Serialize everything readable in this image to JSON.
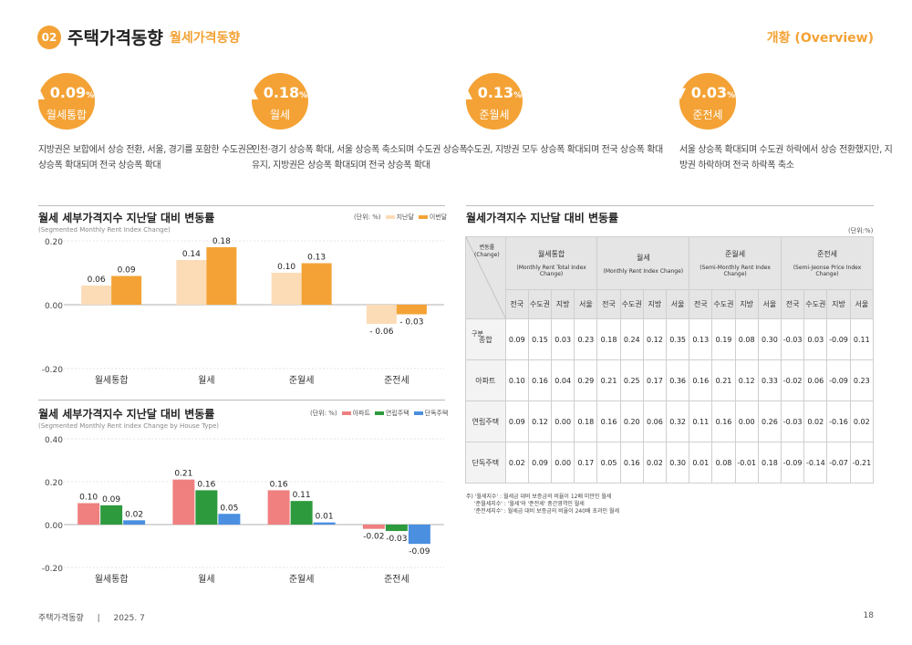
{
  "header": {
    "section_num": "02",
    "title": "주택가격동향",
    "subtitle": "월세가격동향",
    "right_label": "개황 (Overview)"
  },
  "kpis": [
    {
      "arrow": "▲",
      "value": "0.09",
      "unit": "%",
      "name": "월세통합",
      "desc": "지방권은 보합에서 상승 전환, 서울, 경기를 포함한 수도권은 상승폭 확대되며 전국 상승폭 확대"
    },
    {
      "arrow": "▲",
      "value": "0.18",
      "unit": "%",
      "name": "월세",
      "desc": "인천·경기 상승폭 확대, 서울 상승폭 축소되며 수도권 상승폭 유지, 지방권은 상승폭 확대되며 전국 상승폭 확대"
    },
    {
      "arrow": "▲",
      "value": "0.13",
      "unit": "%",
      "name": "준월세",
      "desc": "수도권, 지방권 모두 상승폭 확대되며 전국 상승폭 확대"
    },
    {
      "arrow": "▼",
      "value": "0.03",
      "unit": "%",
      "name": "준전세",
      "desc": "서울 상승폭 확대되며 수도권 하락에서 상승 전환했지만, 지방권 하락하며 전국 하락폭 축소"
    }
  ],
  "chart1": {
    "title": "월세 세부가격지수 지난달 대비 변동률",
    "subtitle": "(Segmented Monthly Rent Index Change)",
    "unit": "(단위: %)",
    "legend": [
      "지난달",
      "이번달"
    ]
  },
  "chart2": {
    "title": "월세 세부가격지수 지난달 대비 변동률",
    "subtitle": "(Segmented Monthly Rent Index Change by House Type)",
    "unit": "(단위: %)",
    "legend": [
      "아파트",
      "연립주택",
      "단독주택"
    ]
  },
  "chart_data": [
    {
      "type": "bar",
      "categories": [
        "월세통합",
        "월세",
        "준월세",
        "준전세"
      ],
      "series": [
        {
          "name": "지난달",
          "values": [
            0.06,
            0.14,
            0.1,
            -0.06
          ],
          "labels": [
            "0.06",
            "0.14",
            "0.10",
            "- 0.06"
          ]
        },
        {
          "name": "이번달",
          "values": [
            0.09,
            0.18,
            0.13,
            -0.03
          ],
          "labels": [
            "0.09",
            "0.18",
            "0.13",
            "- 0.03"
          ]
        }
      ],
      "ylim": [
        -0.2,
        0.2
      ],
      "yticks": [
        "0.20",
        "0.00",
        "-0.20"
      ],
      "colors": [
        "#fcdcb6",
        "#f4a235"
      ],
      "grid": true,
      "legend_position": "top-right"
    },
    {
      "type": "bar",
      "categories": [
        "월세통합",
        "월세",
        "준월세",
        "준전세"
      ],
      "series": [
        {
          "name": "아파트",
          "values": [
            0.1,
            0.21,
            0.16,
            -0.02
          ],
          "labels": [
            "0.10",
            "0.21",
            "0.16",
            "-0.02"
          ]
        },
        {
          "name": "연립주택",
          "values": [
            0.09,
            0.16,
            0.11,
            -0.03
          ],
          "labels": [
            "0.09",
            "0.16",
            "0.11",
            "-0.03"
          ]
        },
        {
          "name": "단독주택",
          "values": [
            0.02,
            0.05,
            0.01,
            -0.09
          ],
          "labels": [
            "0.02",
            "0.05",
            "0.01",
            "-0.09"
          ]
        }
      ],
      "ylim": [
        -0.2,
        0.4
      ],
      "yticks": [
        "0.40",
        "0.20",
        "0.00",
        "-0.20"
      ],
      "colors": [
        "#f08080",
        "#2e9a3e",
        "#4a8fe0"
      ],
      "grid": true,
      "legend_position": "top-right"
    }
  ],
  "table": {
    "title": "월세가격지수 지난달 대비 변동률",
    "unit": "(단위:%)",
    "corner_top": [
      "변동률",
      "(Change)"
    ],
    "corner_bottom": "구분",
    "groups": [
      {
        "ko": "월세통합",
        "en": "(Monthly Rent Total Index Change)"
      },
      {
        "ko": "월세",
        "en": "(Monthly Rent Index Change)"
      },
      {
        "ko": "준월세",
        "en": "(Semi-Monthly Rent Index Change)"
      },
      {
        "ko": "준전세",
        "en": "(Semi-Jeonse Price Index Change)"
      }
    ],
    "subcols": [
      "전국",
      "수도권",
      "지방",
      "서울"
    ],
    "rows": [
      {
        "label": "종합",
        "values": [
          "0.09",
          "0.15",
          "0.03",
          "0.23",
          "0.18",
          "0.24",
          "0.12",
          "0.35",
          "0.13",
          "0.19",
          "0.08",
          "0.30",
          "-0.03",
          "0.03",
          "-0.09",
          "0.11"
        ]
      },
      {
        "label": "아파트",
        "values": [
          "0.10",
          "0.16",
          "0.04",
          "0.29",
          "0.21",
          "0.25",
          "0.17",
          "0.36",
          "0.16",
          "0.21",
          "0.12",
          "0.33",
          "-0.02",
          "0.06",
          "-0.09",
          "0.23"
        ]
      },
      {
        "label": "연립주택",
        "values": [
          "0.09",
          "0.12",
          "0.00",
          "0.18",
          "0.16",
          "0.20",
          "0.06",
          "0.32",
          "0.11",
          "0.16",
          "0.00",
          "0.26",
          "-0.03",
          "0.02",
          "-0.16",
          "0.02"
        ]
      },
      {
        "label": "단독주택",
        "values": [
          "0.02",
          "0.09",
          "0.00",
          "0.17",
          "0.05",
          "0.16",
          "0.02",
          "0.30",
          "0.01",
          "0.08",
          "-0.01",
          "0.18",
          "-0.09",
          "-0.14",
          "-0.07",
          "-0.21"
        ]
      }
    ],
    "notes": [
      "주) '월세지수' : 월세금 대비 보증금의 비율이 12배 미만인 월세",
      "'준월세지수' : '월세'와 '준전세' 중간영역인 월세",
      "'준전세지수' : 월세금 대비 보증금의 비율이 240배 초과인 월세"
    ]
  },
  "footer": {
    "left": "주택가격동향",
    "sep": "|",
    "date": "2025. 7",
    "page": "18"
  }
}
